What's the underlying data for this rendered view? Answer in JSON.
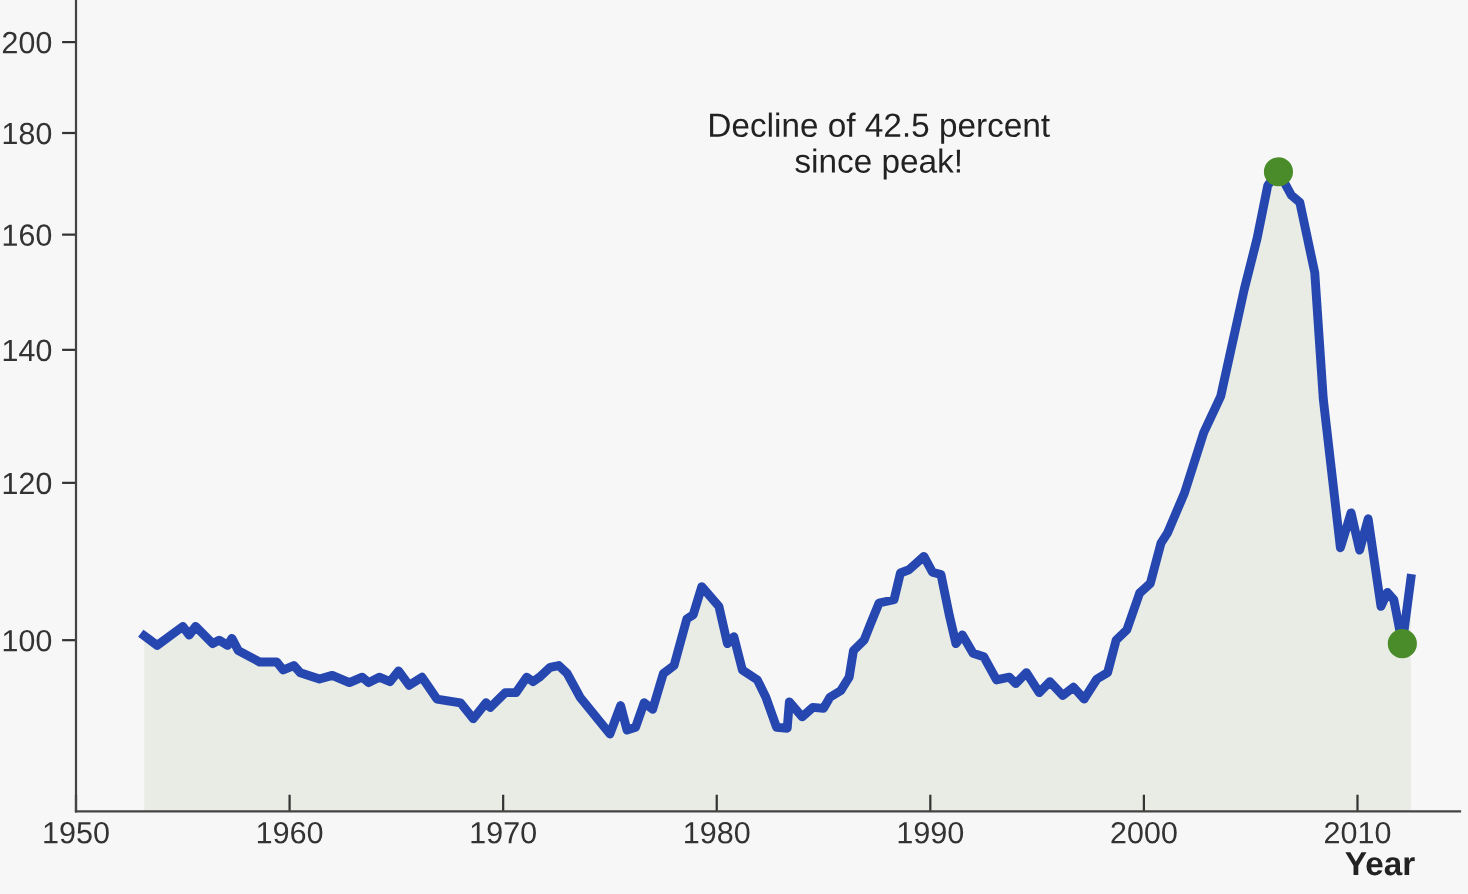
{
  "chart_data": {
    "type": "area",
    "xlabel": "Year",
    "annotations": [
      "Decline of 42.5 percent\nsince peak!"
    ],
    "xlim": [
      1950,
      2014.8
    ],
    "ylim": [
      82,
      210
    ],
    "log": true,
    "xticks": [
      1950,
      1960,
      1970,
      1980,
      1990,
      2000,
      2010
    ],
    "yticks": [
      100,
      120,
      140,
      160,
      180,
      200
    ],
    "grid": false,
    "series": [
      {
        "color": "#2747b0",
        "x": [
          1953.2,
          1953.8,
          1955.0,
          1955.3,
          1955.6,
          1956.4,
          1956.7,
          1957.1,
          1957.3,
          1957.6,
          1958.6,
          1959.4,
          1959.7,
          1960.2,
          1960.5,
          1961.4,
          1962.0,
          1962.8,
          1963.4,
          1963.7,
          1964.2,
          1964.7,
          1965.1,
          1965.6,
          1966.2,
          1966.9,
          1968.0,
          1968.6,
          1969.2,
          1969.4,
          1970.1,
          1970.6,
          1971.1,
          1971.4,
          1971.7,
          1972.2,
          1972.6,
          1973.0,
          1973.6,
          1974.2,
          1975.0,
          1975.5,
          1975.8,
          1976.2,
          1976.6,
          1977.0,
          1977.5,
          1978.0,
          1978.6,
          1978.9,
          1979.3,
          1980.1,
          1980.5,
          1980.8,
          1981.2,
          1981.9,
          1982.3,
          1982.8,
          1983.3,
          1983.4,
          1984.0,
          1984.5,
          1985.0,
          1985.3,
          1985.8,
          1986.2,
          1986.4,
          1986.9,
          1987.2,
          1987.6,
          1988.3,
          1988.6,
          1989.0,
          1989.7,
          1990.1,
          1990.5,
          1990.9,
          1991.2,
          1991.5,
          1992.0,
          1992.5,
          1993.1,
          1993.7,
          1994.0,
          1994.5,
          1995.1,
          1995.6,
          1996.2,
          1996.7,
          1997.2,
          1997.8,
          1998.3,
          1998.7,
          1999.2,
          1999.8,
          2000.3,
          2000.8,
          2001.1,
          2001.9,
          2002.8,
          2003.6,
          2004.7,
          2005.3,
          2005.8,
          2006.3,
          2006.9,
          2007.3,
          2008.0,
          2008.4,
          2009.2,
          2009.7,
          2010.1,
          2010.5,
          2011.1,
          2011.4,
          2011.7,
          2012.1,
          2012.5
        ],
        "values": [
          100.5,
          99.4,
          101.6,
          100.6,
          101.6,
          99.6,
          100,
          99.4,
          100.2,
          98.8,
          97.5,
          97.5,
          96.6,
          97.1,
          96.3,
          95.6,
          96.0,
          95.2,
          95.8,
          95.2,
          95.8,
          95.3,
          96.5,
          94.9,
          95.8,
          93.4,
          93.0,
          91.3,
          93.0,
          92.5,
          94.1,
          94.1,
          95.8,
          95.3,
          95.8,
          96.9,
          97.1,
          96.2,
          93.6,
          91.9,
          89.7,
          92.7,
          90.1,
          90.4,
          93.0,
          92.3,
          96.2,
          97.1,
          102.5,
          103.0,
          106.4,
          104.0,
          99.6,
          100.4,
          96.6,
          95.5,
          93.6,
          90.4,
          90.3,
          93.1,
          91.5,
          92.5,
          92.4,
          93.6,
          94.3,
          95.8,
          98.8,
          100,
          101.9,
          104.4,
          104.8,
          108.1,
          108.5,
          110.2,
          108.2,
          107.9,
          102.8,
          99.6,
          100.6,
          98.5,
          98.1,
          95.5,
          95.8,
          95.1,
          96.3,
          94.1,
          95.3,
          93.8,
          94.7,
          93.4,
          95.6,
          96.3,
          100,
          101.2,
          105.6,
          106.8,
          111.9,
          113.2,
          118.6,
          127.2,
          132.7,
          150.2,
          159.3,
          169.4,
          172.1,
          167.5,
          166.1,
          153.1,
          132.2,
          111.3,
          115.9,
          111.0,
          115.1,
          104.0,
          105.7,
          104.8,
          99.6,
          107.4
        ]
      },
      {
        "type": "scatter",
        "color": "#4a8c2a",
        "marker": "circle",
        "x": [
          2006.3,
          2012.1
        ],
        "values": [
          172.1,
          99.6
        ]
      }
    ]
  }
}
